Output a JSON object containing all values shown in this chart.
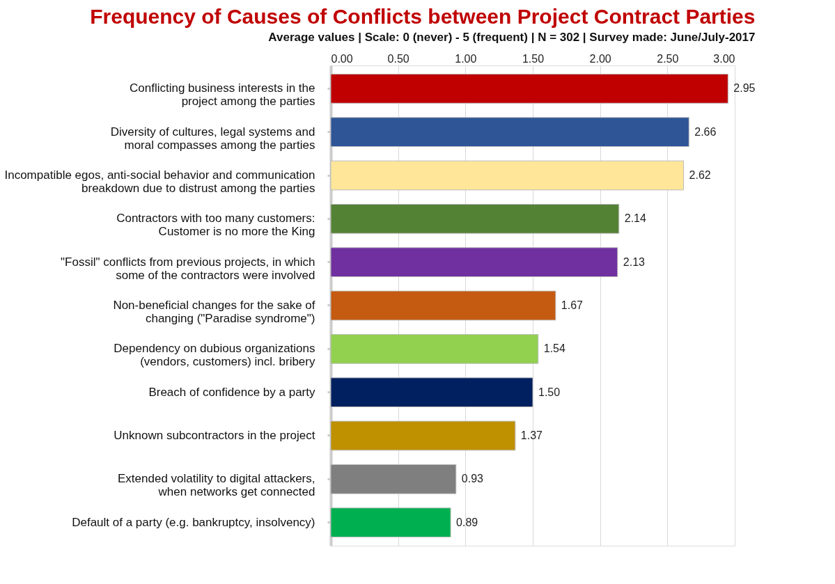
{
  "chart_data": {
    "type": "bar",
    "orientation": "horizontal",
    "title": "Frequency of Causes of Conflicts between Project Contract Parties",
    "subtitle": "Average values  |  Scale: 0 (never) - 5 (frequent)  |  N = 302  |  Survey made: June/July-2017",
    "categories": [
      "Conflicting business interests in the\nproject among the parties",
      "Diversity of cultures, legal systems and\nmoral compasses among the parties",
      "Incompatible egos, anti-social behavior and communication\nbreakdown due to distrust among the parties",
      "Contractors with too many customers:\nCustomer is no more the King",
      "\"Fossil\" conflicts from previous projects, in which\nsome of the contractors were involved",
      "Non-beneficial changes for the sake of\nchanging (\"Paradise syndrome\")",
      "Dependency on dubious organizations\n(vendors, customers) incl. bribery",
      "Breach of confidence by a party",
      "Unknown subcontractors in the project",
      "Extended volatility to digital attackers,\nwhen networks get connected",
      "Default of a party (e.g. bankruptcy, insolvency)"
    ],
    "values": [
      2.95,
      2.66,
      2.62,
      2.14,
      2.13,
      1.67,
      1.54,
      1.5,
      1.37,
      0.93,
      0.89
    ],
    "value_labels": [
      "2.95",
      "2.66",
      "2.62",
      "2.14",
      "2.13",
      "1.67",
      "1.54",
      "1.50",
      "1.37",
      "0.93",
      "0.89"
    ],
    "colors": [
      "#c00000",
      "#2f5597",
      "#ffe699",
      "#548235",
      "#7030a0",
      "#c55a11",
      "#92d050",
      "#002060",
      "#bf9000",
      "#7f7f7f",
      "#00b050"
    ],
    "xlim": [
      0,
      3
    ],
    "xticks": [
      {
        "value": 0,
        "label": "0.00"
      },
      {
        "value": 0.5,
        "label": "0.50"
      },
      {
        "value": 1,
        "label": "1.00"
      },
      {
        "value": 1.5,
        "label": "1.50"
      },
      {
        "value": 2,
        "label": "2.00"
      },
      {
        "value": 2.5,
        "label": "2.50"
      },
      {
        "value": 3,
        "label": "3.00"
      }
    ],
    "grid": "x",
    "legend": false
  }
}
